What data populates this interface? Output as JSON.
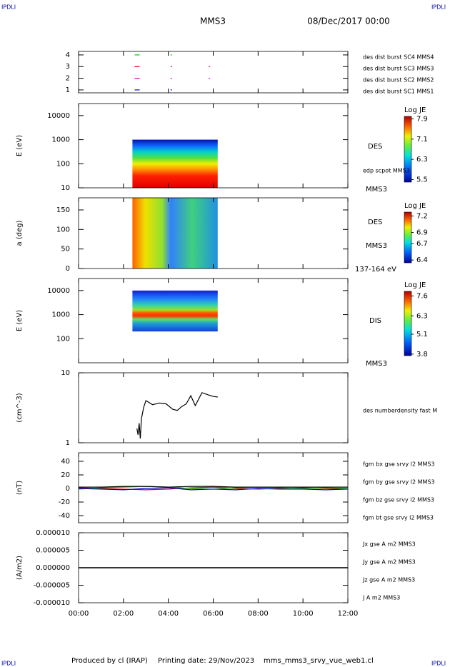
{
  "header": {
    "corner_labels": [
      "IPDLI",
      "IPDLI",
      "IPDLI",
      "IPDLI"
    ],
    "title": "MMS3",
    "date": "08/Dec/2017 00:00"
  },
  "footer": {
    "producer": "Produced by cl (IRAP)",
    "printing_date": "Printing date: 29/Nov/2023",
    "file": "mms_mms3_srvy_vue_web1.cl"
  },
  "chart_data": [
    {
      "type": "scatter",
      "ylim": [
        0.75,
        4.3
      ],
      "yticks": [
        1,
        2,
        3,
        4
      ],
      "series": [
        {
          "name": "des dist burst SC1 MMS1",
          "color": "#0000cc",
          "x": [
            2.5,
            4.1
          ],
          "values": [
            1,
            1
          ]
        },
        {
          "name": "des dist burst SC2 MMS2",
          "color": "#cc00cc",
          "x": [
            2.5,
            4.1,
            5.8
          ],
          "values": [
            2,
            2,
            2
          ]
        },
        {
          "name": "des dist burst SC3 MMS3",
          "color": "#dd0000",
          "x": [
            2.5,
            4.1,
            5.8
          ],
          "values": [
            3,
            3,
            3
          ]
        },
        {
          "name": "des dist burst SC4 MMS4",
          "color": "#00cc00",
          "x": [
            2.5,
            4.1
          ],
          "values": [
            4,
            4
          ]
        }
      ]
    },
    {
      "type": "spectrogram",
      "ylabel": "E (eV)",
      "log": true,
      "ylim": [
        10,
        31623
      ],
      "yticks": [
        10,
        100,
        1000,
        10000
      ],
      "x": [
        2.4,
        6.2
      ],
      "y": [
        10,
        1000
      ],
      "colorbar": {
        "label": "Log JE",
        "clim": [
          5.4,
          8.0
        ],
        "ticks": [
          7.9,
          7.1,
          6.3,
          5.5
        ]
      },
      "annotations": [
        "DES",
        "edp scpot MMS3",
        "MMS3"
      ]
    },
    {
      "type": "spectrogram",
      "ylabel": "a (deg)",
      "log": false,
      "ylim": [
        0,
        181
      ],
      "yticks": [
        0,
        50,
        100,
        150
      ],
      "x": [
        2.4,
        6.2
      ],
      "y": [
        0,
        181
      ],
      "colorbar": {
        "label": "Log JE",
        "clim": [
          6.35,
          7.27
        ],
        "ticks": [
          7.2,
          6.9,
          6.7,
          6.4
        ]
      },
      "annotations": [
        "DES",
        "MMS3",
        "137-164 eV"
      ]
    },
    {
      "type": "spectrogram",
      "ylabel": "E (eV)",
      "log": true,
      "ylim": [
        10,
        31623
      ],
      "yticks": [
        100,
        1000,
        10000
      ],
      "x": [
        2.4,
        6.2
      ],
      "y": [
        200,
        10000
      ],
      "colorbar": {
        "label": "Log JE",
        "clim": [
          3.7,
          7.9
        ],
        "ticks": [
          7.6,
          6.3,
          5.1,
          3.8
        ]
      },
      "annotations": [
        "DIS",
        "MMS3"
      ]
    },
    {
      "type": "line",
      "ylabel": "(cm^-3)",
      "log": true,
      "ylim": [
        1,
        10
      ],
      "yticks": [
        1,
        10
      ],
      "annotations": [
        "des numberdensity fast M"
      ],
      "series": [
        {
          "name": "des numberdensity fast",
          "color": "#000000",
          "x": [
            2.6,
            2.65,
            2.7,
            2.75,
            2.8,
            2.9,
            3.0,
            3.3,
            3.6,
            3.9,
            4.2,
            4.4,
            4.6,
            4.8,
            5.0,
            5.2,
            5.5,
            5.8,
            6.0,
            6.2
          ],
          "values": [
            1.6,
            1.3,
            1.9,
            1.15,
            2.2,
            3.2,
            4.0,
            3.5,
            3.7,
            3.6,
            3.0,
            2.9,
            3.3,
            3.6,
            4.7,
            3.4,
            5.2,
            4.8,
            4.6,
            4.5
          ]
        }
      ]
    },
    {
      "type": "line",
      "ylabel": "(nT)",
      "log": false,
      "ylim": [
        -50.5,
        52.6
      ],
      "yticks": [
        -40,
        -20,
        0,
        20,
        40
      ],
      "legend_side": "right",
      "series": [
        {
          "name": "fgm bx gse srvy l2 MMS3",
          "color": "#dd0000",
          "x": [
            0,
            1,
            2,
            3,
            4,
            5,
            6,
            7,
            8,
            9,
            10,
            11,
            12
          ],
          "values": [
            1,
            0,
            -1,
            -2,
            -1,
            1,
            2,
            0,
            -1,
            0,
            1,
            0,
            -1
          ]
        },
        {
          "name": "fgm by gse srvy l2 MMS3",
          "color": "#00bb00",
          "x": [
            0,
            1,
            2,
            3,
            4,
            5,
            6,
            7,
            8,
            9,
            10,
            11,
            12
          ],
          "values": [
            -1,
            1,
            2,
            3,
            2,
            0,
            -1,
            1,
            2,
            1,
            0,
            1,
            0
          ]
        },
        {
          "name": "fgm bz gse srvy l2 MMS3",
          "color": "#0000cc",
          "x": [
            0,
            1,
            2,
            3,
            4,
            5,
            6,
            7,
            8,
            9,
            10,
            11,
            12
          ],
          "values": [
            0,
            -1,
            -2,
            0,
            1,
            -2,
            -1,
            -2,
            0,
            -1,
            -1,
            -2,
            -1
          ]
        },
        {
          "name": "fgm bt gse srvy l2 MMS3",
          "color": "#000000",
          "x": [
            0,
            1,
            2,
            3,
            4,
            5,
            6,
            7,
            8,
            9,
            10,
            11,
            12
          ],
          "values": [
            2,
            2,
            3,
            3,
            2,
            3,
            3,
            2,
            2,
            2,
            2,
            2,
            2
          ]
        }
      ]
    },
    {
      "type": "line",
      "ylabel": "(A/m2)",
      "log": false,
      "ylim": [
        -1e-05,
        1e-05
      ],
      "yticks": [
        {
          "value": -1e-05,
          "label": "-0.000010"
        },
        {
          "value": -5e-06,
          "label": "-0.000005"
        },
        {
          "value": 0,
          "label": "0.000000"
        },
        {
          "value": 5e-06,
          "label": "0.000005"
        },
        {
          "value": 1e-05,
          "label": "0.000010"
        }
      ],
      "xlim": [
        0,
        12
      ],
      "xticks": [
        {
          "value": 0,
          "label": "00:00"
        },
        {
          "value": 2,
          "label": "02:00"
        },
        {
          "value": 4,
          "label": "04:00"
        },
        {
          "value": 6,
          "label": "06:00"
        },
        {
          "value": 8,
          "label": "08:00"
        },
        {
          "value": 10,
          "label": "10:00"
        },
        {
          "value": 12,
          "label": "12:00"
        }
      ],
      "series": [
        {
          "name": "Jx gse A m2 MMS3",
          "color": "#dd0000",
          "x": [
            0,
            12
          ],
          "values": [
            0,
            0
          ]
        },
        {
          "name": "Jy gse A m2 MMS3",
          "color": "#44bb00",
          "x": [
            0,
            12
          ],
          "values": [
            0,
            0
          ]
        },
        {
          "name": "Jz gse A m2 MMS3",
          "color": "#0000cc",
          "x": [
            0,
            12
          ],
          "values": [
            0,
            0
          ]
        },
        {
          "name": "J A m2 MMS3",
          "color": "#000000",
          "x": [
            0,
            12
          ],
          "values": [
            0,
            0
          ]
        }
      ]
    }
  ]
}
